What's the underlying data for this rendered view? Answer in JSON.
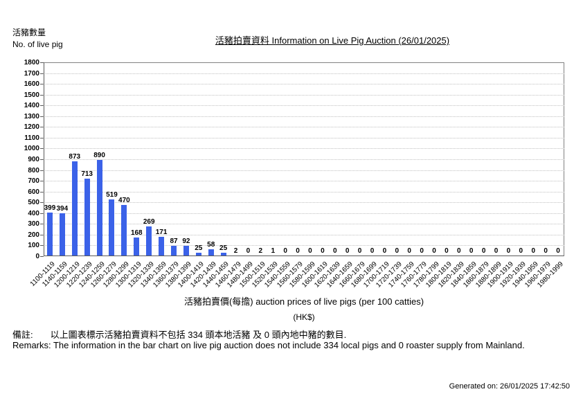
{
  "header": {
    "y_axis_label_zh": "活豬數量",
    "y_axis_label_en": "No. of live pig",
    "title": "活豬拍賣資料 Information on Live Pig Auction (26/01/2025)"
  },
  "footer": {
    "x_axis_title": "活豬拍賣價(每擔) auction prices of live pigs (per 100 catties)",
    "x_axis_unit": "(HK$)",
    "remark_zh_label": "備註:",
    "remark_zh_text": "以上圖表標示活豬拍賣資料不包括 334 頭本地活豬 及 0 頭內地中豬的數目.",
    "remark_en": "Remarks: The information in the bar chart on live pig auction does not include 334 local pigs and 0 roaster supply from Mainland.",
    "generated_on": "Generated on: 26/01/2025 17:42:50"
  },
  "chart_data": {
    "type": "bar",
    "title": "活豬拍賣資料 Information on Live Pig Auction (26/01/2025)",
    "xlabel": "活豬拍賣價(每擔) auction prices of live pigs (per 100 catties) (HK$)",
    "ylabel": "活豬數量 No. of live pig",
    "ylim": [
      0,
      1800
    ],
    "ytick_step": 100,
    "grid": true,
    "legend": false,
    "bar_color": "#3b62e8",
    "categories": [
      "1100-1119",
      "1140-1159",
      "1200-1219",
      "1220-1239",
      "1240-1259",
      "1260-1279",
      "1280-1299",
      "1300-1319",
      "1320-1339",
      "1340-1359",
      "1360-1379",
      "1380-1399",
      "1400-1419",
      "1420-1439",
      "1440-1459",
      "1460-1479",
      "1480-1499",
      "1500-1519",
      "1520-1539",
      "1540-1559",
      "1560-1579",
      "1580-1599",
      "1600-1619",
      "1620-1639",
      "1640-1659",
      "1660-1679",
      "1680-1699",
      "1700-1719",
      "1720-1739",
      "1740-1759",
      "1760-1779",
      "1780-1799",
      "1800-1819",
      "1820-1839",
      "1840-1859",
      "1860-1879",
      "1880-1899",
      "1900-1919",
      "1920-1939",
      "1940-1959",
      "1960-1979",
      "1980-1999"
    ],
    "values": [
      399,
      394,
      873,
      713,
      890,
      519,
      470,
      168,
      269,
      171,
      87,
      92,
      25,
      58,
      25,
      2,
      0,
      2,
      1,
      0,
      0,
      0,
      0,
      0,
      0,
      0,
      0,
      0,
      0,
      0,
      0,
      0,
      0,
      0,
      0,
      0,
      0,
      0,
      0,
      0,
      0,
      0
    ]
  }
}
